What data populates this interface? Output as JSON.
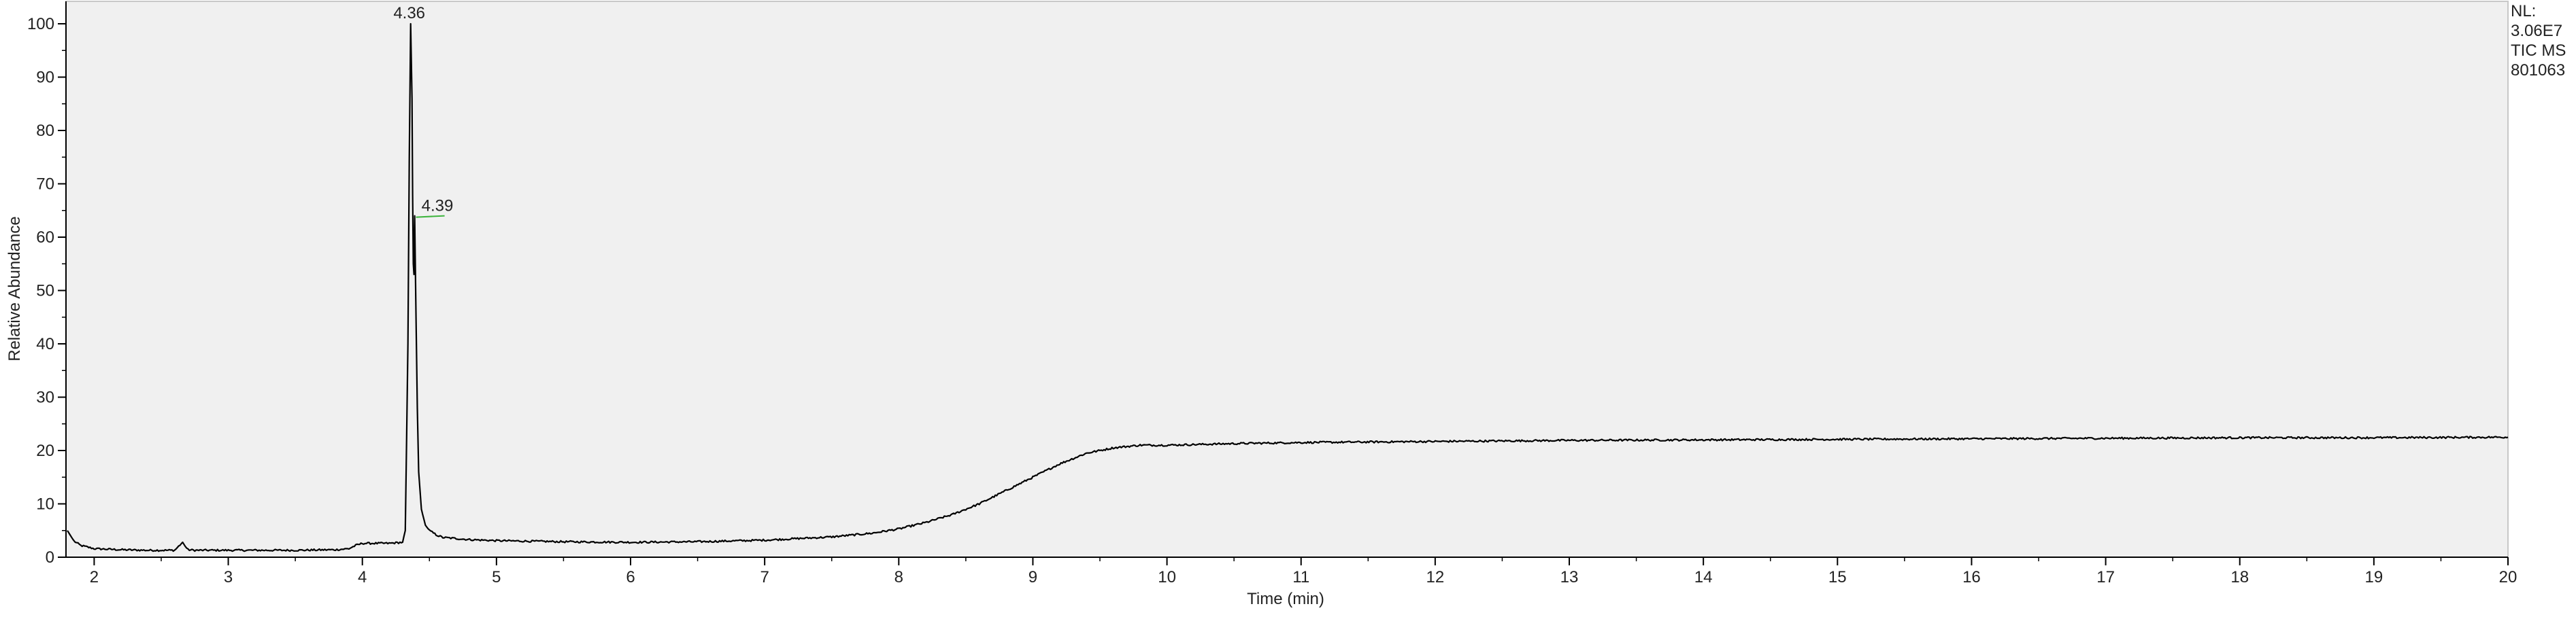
{
  "chart_data": {
    "type": "line",
    "title": "",
    "xlabel": "Time (min)",
    "ylabel": "Relative Abundance",
    "xlim": [
      1.8,
      20
    ],
    "ylim": [
      0,
      100
    ],
    "xticks": [
      "2",
      "3",
      "4",
      "5",
      "6",
      "7",
      "8",
      "9",
      "10",
      "11",
      "12",
      "13",
      "14",
      "15",
      "16",
      "17",
      "18",
      "19",
      "20"
    ],
    "yticks": [
      "0",
      "10",
      "20",
      "30",
      "40",
      "50",
      "60",
      "70",
      "80",
      "90",
      "100"
    ],
    "grid": false,
    "plot_background": "#f0f0f0",
    "line_color": "#000000",
    "annotation_tick_color": "#3cb43c",
    "info_box": [
      "NL:",
      "3.06E7",
      "TIC MS",
      "801063"
    ],
    "peak_labels": [
      {
        "text": "4.36",
        "x": 4.36,
        "y": 100
      },
      {
        "text": "4.39",
        "x": 4.39,
        "y": 64
      }
    ],
    "series": [
      {
        "x": [
          1.8,
          1.82,
          1.85,
          1.9,
          2.0,
          2.2,
          2.4,
          2.6,
          2.66,
          2.68,
          2.7,
          2.75,
          2.9,
          3.2,
          3.5,
          3.8,
          3.9,
          3.95,
          4.0,
          4.1,
          4.2,
          4.3,
          4.32,
          4.34,
          4.35,
          4.36,
          4.37,
          4.375,
          4.38,
          4.385,
          4.39,
          4.4,
          4.41,
          4.42,
          4.44,
          4.47,
          4.5,
          4.55,
          4.6,
          4.8,
          5.0,
          5.5,
          6.0,
          6.5,
          7.0,
          7.5,
          7.8,
          8.0,
          8.2,
          8.4,
          8.6,
          8.8,
          9.0,
          9.2,
          9.4,
          9.6,
          9.8,
          10.0,
          10.5,
          11.0,
          12.0,
          13.0,
          14.0,
          15.0,
          16.0,
          17.0,
          18.0,
          19.0,
          20.0
        ],
        "y": [
          5.0,
          4.2,
          3.0,
          2.2,
          1.6,
          1.4,
          1.3,
          1.3,
          2.8,
          2.0,
          1.4,
          1.3,
          1.3,
          1.3,
          1.3,
          1.4,
          1.6,
          2.2,
          2.6,
          2.6,
          2.6,
          2.8,
          5.0,
          40.0,
          75.0,
          100.0,
          86.0,
          68.0,
          55.0,
          53.0,
          64.0,
          45.0,
          28.0,
          16.0,
          9.0,
          6.0,
          5.0,
          4.2,
          3.7,
          3.3,
          3.1,
          2.9,
          2.8,
          2.9,
          3.2,
          3.8,
          4.5,
          5.3,
          6.5,
          8.0,
          10.0,
          12.5,
          15.0,
          17.5,
          19.5,
          20.5,
          21.0,
          21.0,
          21.3,
          21.5,
          21.7,
          21.9,
          22.0,
          22.1,
          22.2,
          22.3,
          22.4,
          22.4,
          22.5
        ]
      }
    ]
  }
}
